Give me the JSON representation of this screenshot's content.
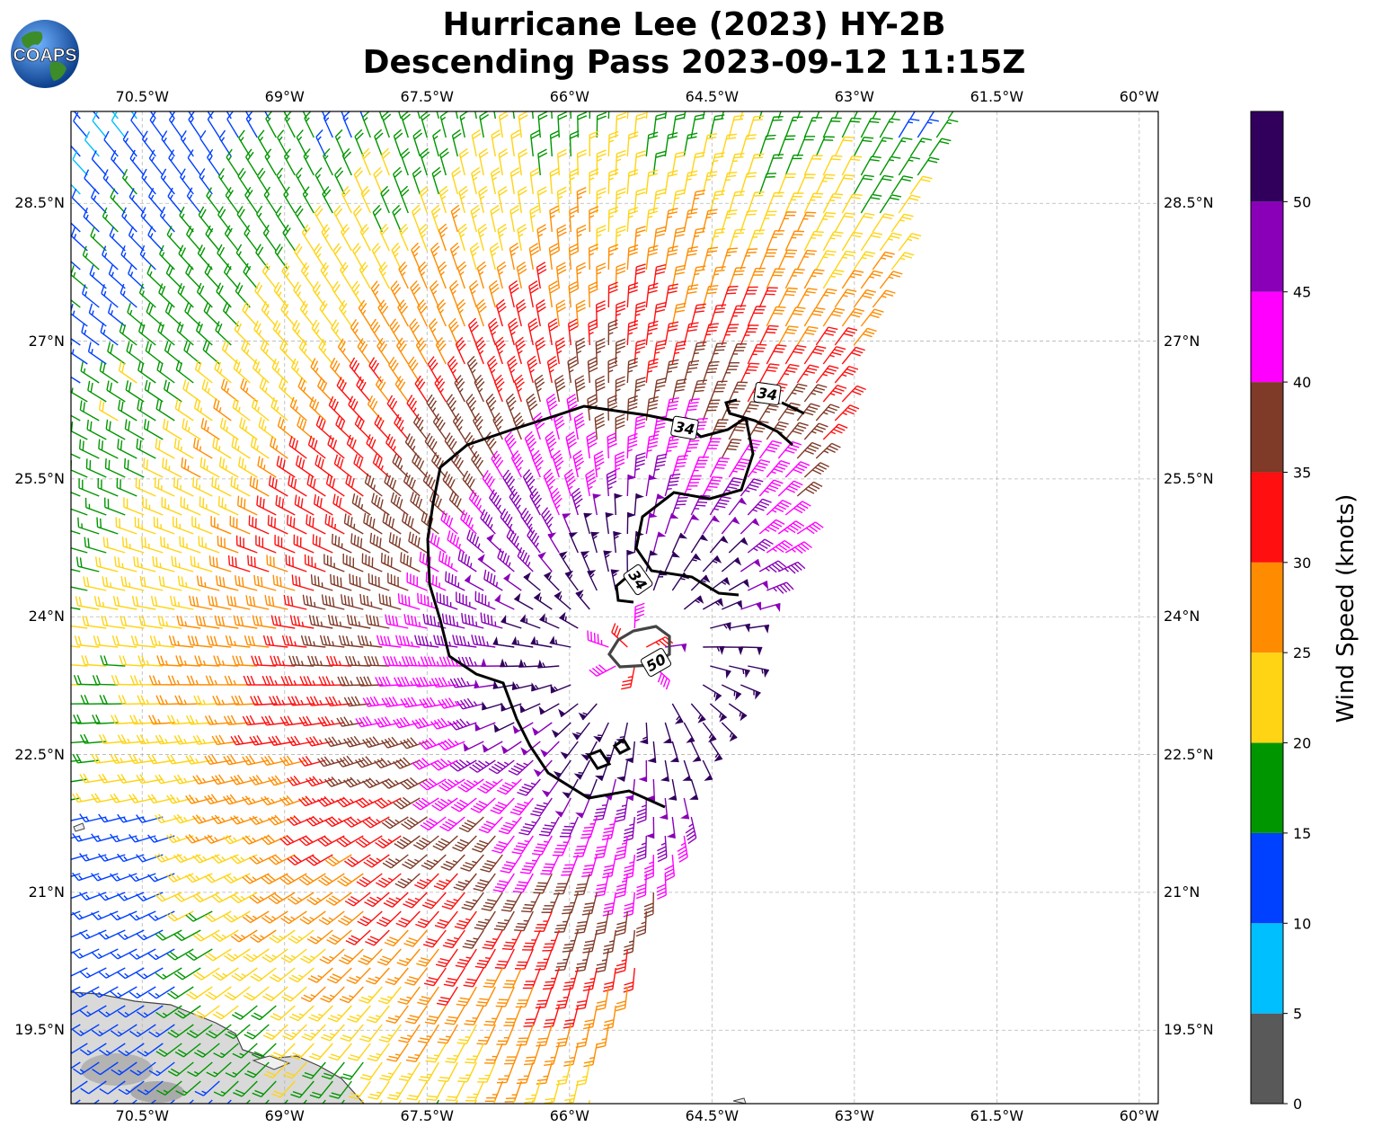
{
  "title": {
    "line1": "Hurricane Lee (2023) HY-2B",
    "line2": "Descending Pass 2023-09-12 11:15Z"
  },
  "logo": {
    "text": "COAPS",
    "icon": "globe-logo-icon"
  },
  "map": {
    "lon_range": [
      -71.25,
      -59.8
    ],
    "lat_range": [
      18.7,
      29.5
    ],
    "lon_ticks": [
      {
        "value": -70.5,
        "label": "70.5°W"
      },
      {
        "value": -69.0,
        "label": "69°W"
      },
      {
        "value": -67.5,
        "label": "67.5°W"
      },
      {
        "value": -66.0,
        "label": "66°W"
      },
      {
        "value": -64.5,
        "label": "64.5°W"
      },
      {
        "value": -63.0,
        "label": "63°W"
      },
      {
        "value": -61.5,
        "label": "61.5°W"
      },
      {
        "value": -60.0,
        "label": "60°W"
      }
    ],
    "lat_ticks": [
      {
        "value": 28.5,
        "label": "28.5°N"
      },
      {
        "value": 27.0,
        "label": "27°N"
      },
      {
        "value": 25.5,
        "label": "25.5°N"
      },
      {
        "value": 24.0,
        "label": "24°N"
      },
      {
        "value": 22.5,
        "label": "22.5°N"
      },
      {
        "value": 21.0,
        "label": "21°N"
      },
      {
        "value": 19.5,
        "label": "19.5°N"
      }
    ],
    "grid": true,
    "storm_center": {
      "lon": -65.3,
      "lat": 23.6
    },
    "contours": [
      {
        "label": "34",
        "level": 34
      },
      {
        "label": "34",
        "level": 34
      },
      {
        "label": "34",
        "level": 34
      },
      {
        "label": "50",
        "level": 50
      }
    ]
  },
  "colorbar": {
    "label": "Wind Speed (knots)",
    "ticks": [
      "0",
      "5",
      "10",
      "15",
      "20",
      "25",
      "30",
      "35",
      "40",
      "45",
      "50"
    ],
    "colors": [
      "#595959",
      "#00bfff",
      "#0040ff",
      "#009600",
      "#ffd414",
      "#ff8c00",
      "#ff0f0f",
      "#7f3a28",
      "#ff00ff",
      "#8a00b8",
      "#31005c"
    ],
    "range": [
      0,
      55
    ]
  }
}
